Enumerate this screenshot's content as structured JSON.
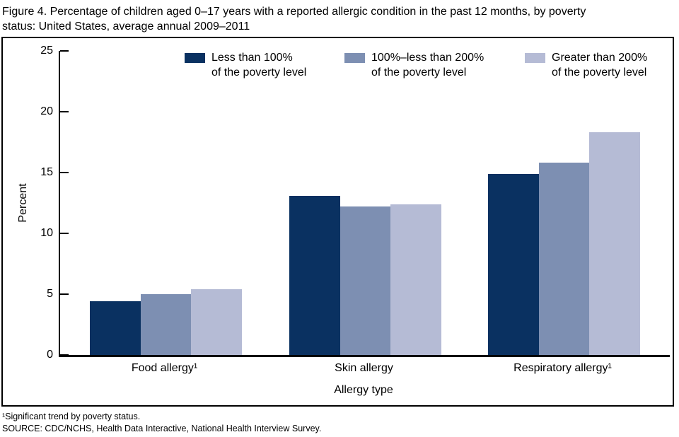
{
  "title_lines": [
    "Figure 4. Percentage of children aged 0–17 years with a reported allergic condition in the past 12 months, by poverty",
    "status: United States, average annual 2009–2011"
  ],
  "legend": [
    {
      "line1": "Less than 100%",
      "line2": "of the poverty level",
      "color": "#0a3161"
    },
    {
      "line1": "100%–less than 200%",
      "line2": "of the poverty level",
      "color": "#7d8fb2"
    },
    {
      "line1": "Greater than 200%",
      "line2": "of the poverty level",
      "color": "#b5bbd5"
    }
  ],
  "chart_data": {
    "type": "bar",
    "title": "Figure 4. Percentage of children aged 0–17 years with a reported allergic condition in the past 12 months, by poverty status: United States, average annual 2009–2011",
    "categories": [
      "Food allergy¹",
      "Skin allergy",
      "Respiratory allergy¹"
    ],
    "series": [
      {
        "name": "Less than 100% of the poverty level",
        "color": "#0a3161",
        "values": [
          4.4,
          13.1,
          14.9
        ]
      },
      {
        "name": "100%–less than 200% of the poverty level",
        "color": "#7d8fb2",
        "values": [
          5.0,
          12.2,
          15.8
        ]
      },
      {
        "name": "Greater than 200% of the poverty level",
        "color": "#b5bbd5",
        "values": [
          5.4,
          12.4,
          18.3
        ]
      }
    ],
    "xlabel": "Allergy type",
    "ylabel": "Percent",
    "ylim": [
      0,
      25
    ],
    "yticks": [
      0,
      5,
      10,
      15,
      20,
      25
    ],
    "grid": false,
    "legend_position": "top"
  },
  "footnotes": [
    "¹Significant trend by poverty status.",
    "SOURCE: CDC/NCHS, Health Data Interactive, National Health Interview Survey."
  ]
}
